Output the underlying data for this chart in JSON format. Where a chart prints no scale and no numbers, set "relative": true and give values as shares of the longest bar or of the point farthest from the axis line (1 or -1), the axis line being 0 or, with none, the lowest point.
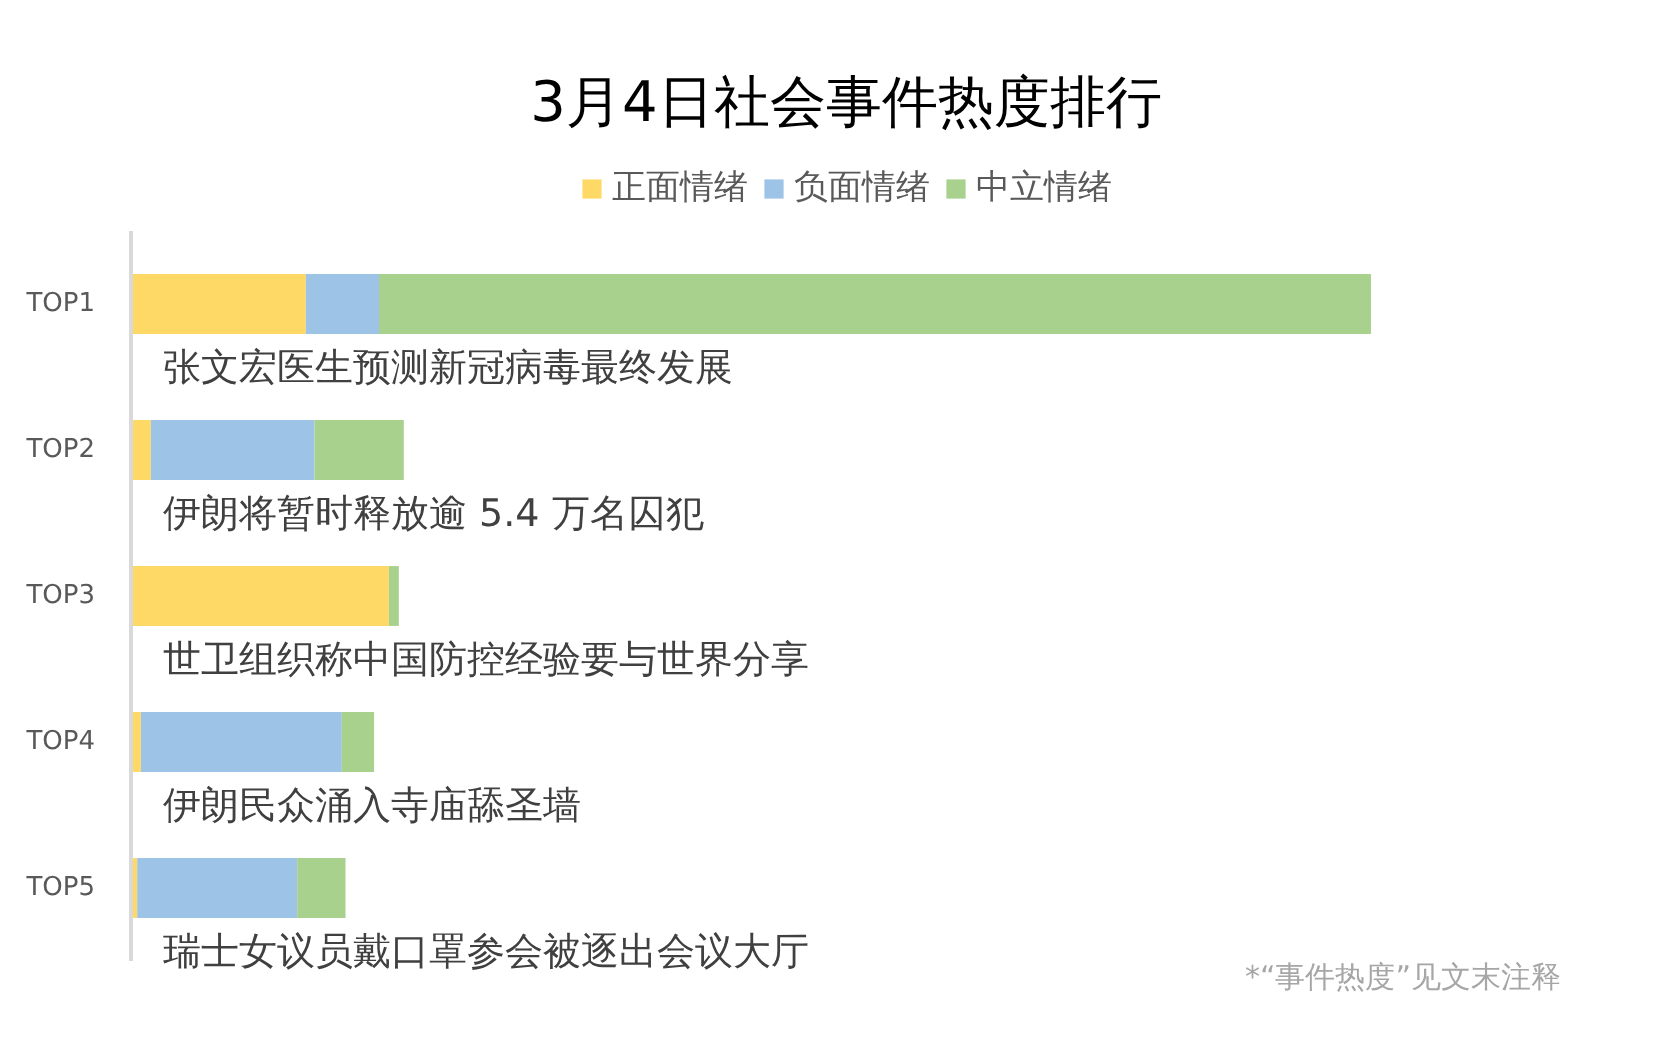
{
  "chart_data": {
    "type": "bar",
    "orientation": "horizontal",
    "stacked": true,
    "relative": true,
    "title": "3月4日社会事件热度排行",
    "categories": [
      "TOP1",
      "TOP2",
      "TOP3",
      "TOP4",
      "TOP5"
    ],
    "series": [
      {
        "name": "正面情绪",
        "color": "#ffd966",
        "values": [
          0.141,
          0.016,
          0.208,
          0.008,
          0.005
        ]
      },
      {
        "name": "负面情绪",
        "color": "#9dc3e6",
        "values": [
          0.059,
          0.132,
          0,
          0.162,
          0.129
        ]
      },
      {
        "name": "中立情绪",
        "color": "#a9d18e",
        "values": [
          0.8,
          0.072,
          0.008,
          0.026,
          0.039
        ]
      }
    ],
    "legend": "top",
    "grid": false,
    "annotations": [
      "张文宏医生预测新冠病毒最终发展",
      "伊朗将暂时释放逾 5.4 万名囚犯",
      "世卫组织称中国防控经验要与世界分享",
      "伊朗民众涌入寺庙舔圣墙",
      "瑞士女议员戴口罩参会被逐出会议大厅",
      "*“事件热度”见文末注释"
    ]
  }
}
